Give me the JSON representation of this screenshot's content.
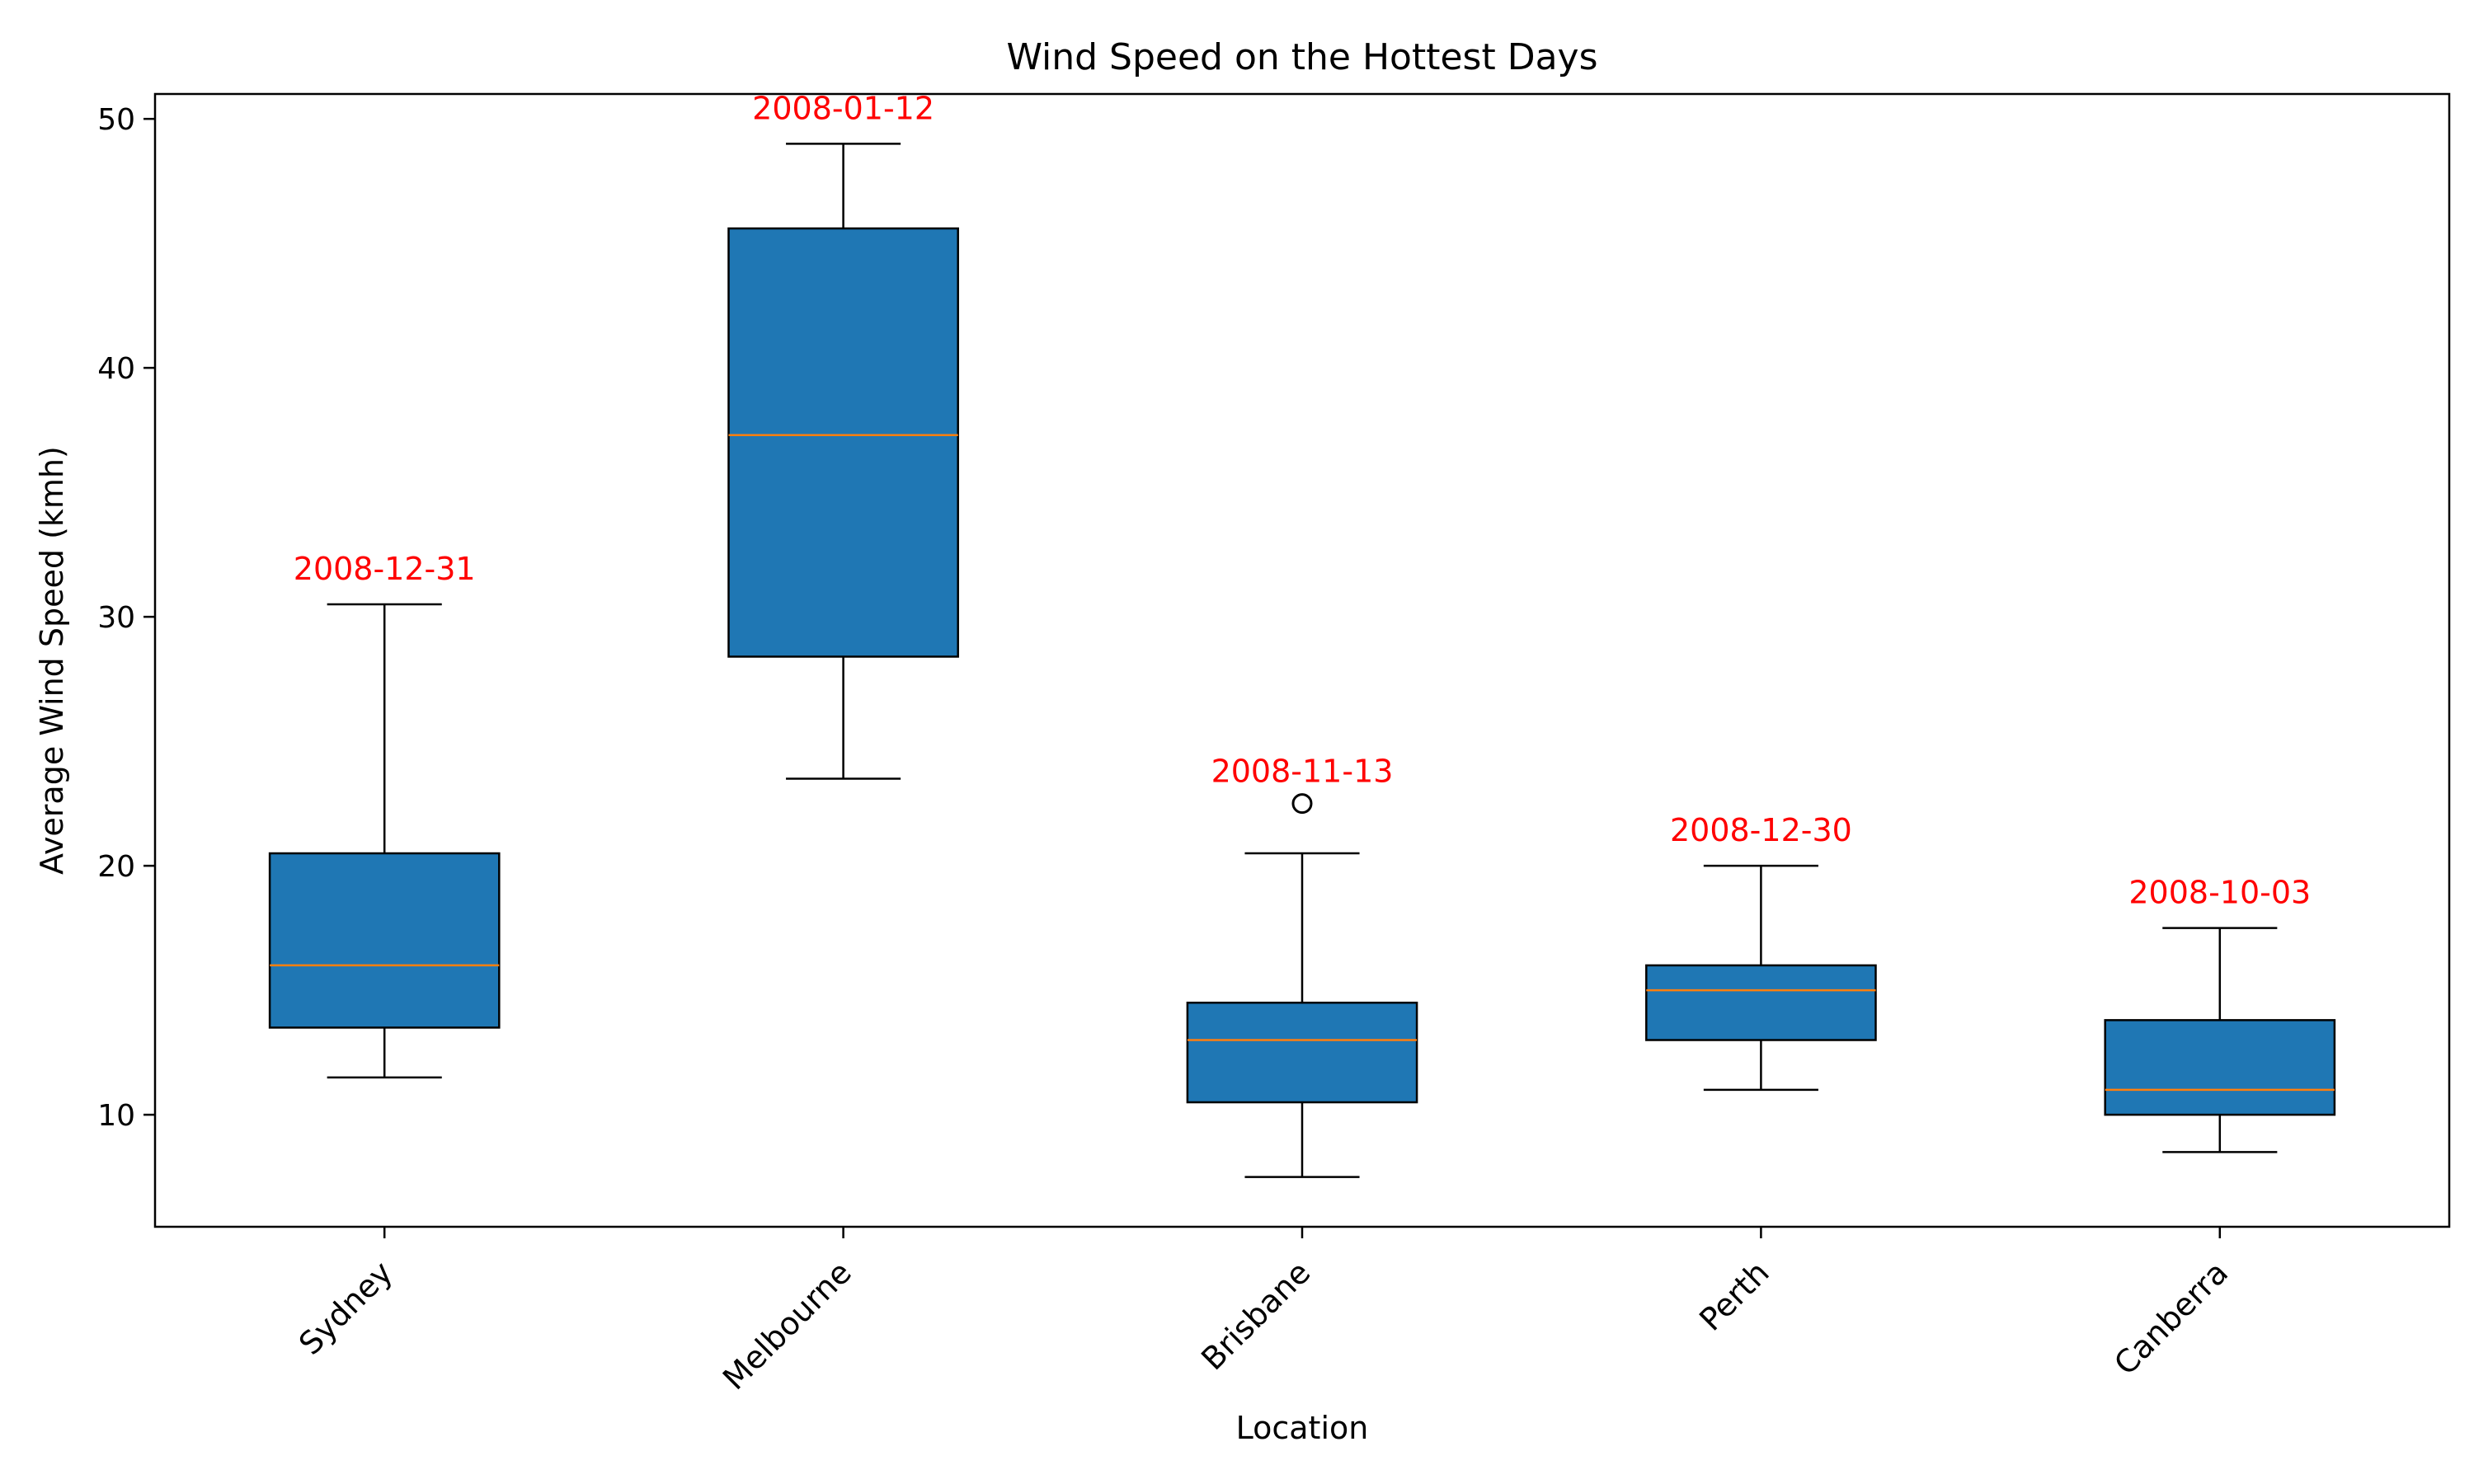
{
  "chart_data": {
    "type": "box",
    "title": "Wind Speed on the Hottest Days",
    "xlabel": "Location",
    "ylabel": "Average Wind Speed (kmh)",
    "ylim": [
      5.5,
      51
    ],
    "yticks": [
      10,
      20,
      30,
      40,
      50
    ],
    "grid": false,
    "categories": [
      "Sydney",
      "Melbourne",
      "Brisbane",
      "Perth",
      "Canberra"
    ],
    "boxes": [
      {
        "category": "Sydney",
        "whisker_low": 11.5,
        "q1": 13.5,
        "median": 16,
        "q3": 20.5,
        "whisker_high": 30.5,
        "outliers": [],
        "annotation": "2008-12-31"
      },
      {
        "category": "Melbourne",
        "whisker_low": 23.5,
        "q1": 28.4,
        "median": 37.3,
        "q3": 45.6,
        "whisker_high": 49,
        "outliers": [],
        "annotation": "2008-01-12"
      },
      {
        "category": "Brisbane",
        "whisker_low": 7.5,
        "q1": 10.5,
        "median": 13,
        "q3": 14.5,
        "whisker_high": 20.5,
        "outliers": [
          22.5
        ],
        "annotation": "2008-11-13"
      },
      {
        "category": "Perth",
        "whisker_low": 11,
        "q1": 13,
        "median": 15,
        "q3": 16,
        "whisker_high": 20,
        "outliers": [],
        "annotation": "2008-12-30"
      },
      {
        "category": "Canberra",
        "whisker_low": 8.5,
        "q1": 10,
        "median": 11,
        "q3": 13.8,
        "whisker_high": 17.5,
        "outliers": [],
        "annotation": "2008-10-03"
      }
    ],
    "colors": {
      "box_fill": "#1f77b4",
      "median": "#ff7f0e",
      "annotation": "#ff0000",
      "axis": "#000000"
    }
  }
}
